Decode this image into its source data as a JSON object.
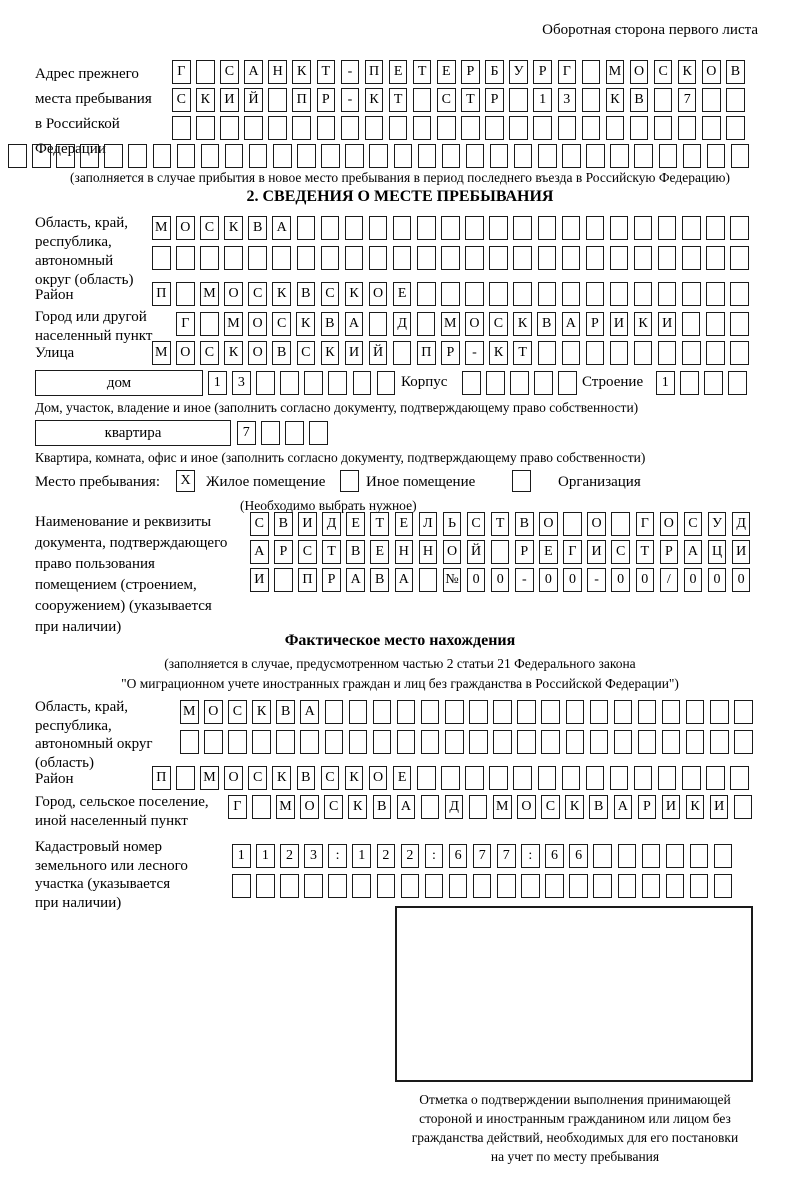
{
  "header": {
    "side_note": "Оборотная сторона первого листа"
  },
  "prev_address": {
    "label_lines": [
      "Адрес прежнего",
      "места пребывания",
      "в Российской",
      "Федерации"
    ],
    "rows": [
      [
        "Г",
        "",
        "С",
        "А",
        "Н",
        "К",
        "Т",
        "-",
        "П",
        "Е",
        "Т",
        "Е",
        "Р",
        "Б",
        "У",
        "Р",
        "Г",
        "",
        "М",
        "О",
        "С",
        "К",
        "О",
        "В"
      ],
      [
        "С",
        "К",
        "И",
        "Й",
        "",
        "П",
        "Р",
        "-",
        "К",
        "Т",
        "",
        "С",
        "Т",
        "Р",
        "",
        "1",
        "3",
        "",
        "К",
        "В",
        "",
        "7",
        "",
        ""
      ],
      [
        "",
        "",
        "",
        "",
        "",
        "",
        "",
        "",
        "",
        "",
        "",
        "",
        "",
        "",
        "",
        "",
        "",
        "",
        "",
        "",
        "",
        "",
        "",
        ""
      ],
      [
        "",
        "",
        "",
        "",
        "",
        "",
        "",
        "",
        "",
        "",
        "",
        "",
        "",
        "",
        "",
        "",
        "",
        "",
        "",
        "",
        "",
        "",
        "",
        "",
        "",
        "",
        "",
        "",
        "",
        "",
        ""
      ]
    ],
    "note": "(заполняется в случае прибытия в новое место пребывания в период последнего въезда в Российскую Федерацию)"
  },
  "section2": {
    "title": "2. СВЕДЕНИЯ О МЕСТЕ ПРЕБЫВАНИЯ",
    "oblast": {
      "label_lines": [
        "Область, край,",
        "республика,",
        "автономный",
        "округ (область)"
      ],
      "rows": [
        [
          "М",
          "О",
          "С",
          "К",
          "В",
          "А",
          "",
          "",
          "",
          "",
          "",
          "",
          "",
          "",
          "",
          "",
          "",
          "",
          "",
          "",
          "",
          "",
          "",
          "",
          ""
        ],
        [
          "",
          "",
          "",
          "",
          "",
          "",
          "",
          "",
          "",
          "",
          "",
          "",
          "",
          "",
          "",
          "",
          "",
          "",
          "",
          "",
          "",
          "",
          "",
          "",
          ""
        ]
      ]
    },
    "raion": {
      "label": "Район",
      "row": [
        "П",
        "",
        "М",
        "О",
        "С",
        "К",
        "В",
        "С",
        "К",
        "О",
        "Е",
        "",
        "",
        "",
        "",
        "",
        "",
        "",
        "",
        "",
        "",
        "",
        "",
        "",
        ""
      ]
    },
    "gorod": {
      "label_lines": [
        "Город или другой",
        "населенный пункт"
      ],
      "row": [
        "Г",
        "",
        "М",
        "О",
        "С",
        "К",
        "В",
        "А",
        "",
        "Д",
        "",
        "М",
        "О",
        "С",
        "К",
        "В",
        "А",
        "Р",
        "И",
        "К",
        "И",
        "",
        "",
        ""
      ]
    },
    "ulitsa": {
      "label": "Улица",
      "row": [
        "М",
        "О",
        "С",
        "К",
        "О",
        "В",
        "С",
        "К",
        "И",
        "Й",
        "",
        "П",
        "Р",
        "-",
        "К",
        "Т",
        "",
        "",
        "",
        "",
        "",
        "",
        "",
        "",
        ""
      ]
    },
    "dom": {
      "box_label": "дом",
      "cells": [
        "1",
        "3",
        "",
        "",
        "",
        "",
        "",
        ""
      ],
      "korpus_label": "Корпус",
      "korpus_cells": [
        "",
        "",
        "",
        "",
        ""
      ],
      "stroenie_label": "Строение",
      "stroenie_cells": [
        "1",
        "",
        "",
        ""
      ],
      "note": "Дом, участок, владение и иное (заполнить согласно документу, подтверждающему право собственности)"
    },
    "kvartira": {
      "box_label": "квартира",
      "cells": [
        "7",
        "",
        "",
        ""
      ],
      "note": "Квартира, комната, офис и иное (заполнить согласно документу, подтверждающему право собственности)"
    },
    "mesto": {
      "label": "Место пребывания:",
      "options": [
        {
          "label": "Жилое помещение",
          "value": "X"
        },
        {
          "label": "Иное помещение",
          "value": ""
        },
        {
          "label": "Организация",
          "value": ""
        }
      ],
      "note": "(Необходимо выбрать нужное)"
    },
    "doc": {
      "label_lines": [
        "Наименование и реквизиты",
        "документа, подтверждающего",
        "право пользования",
        "помещением (строением,",
        "сооружением) (указывается",
        "при наличии)"
      ],
      "rows": [
        [
          "С",
          "В",
          "И",
          "Д",
          "Е",
          "Т",
          "Е",
          "Л",
          "Ь",
          "С",
          "Т",
          "В",
          "О",
          "",
          "О",
          "",
          "Г",
          "О",
          "С",
          "У",
          "Д"
        ],
        [
          "А",
          "Р",
          "С",
          "Т",
          "В",
          "Е",
          "Н",
          "Н",
          "О",
          "Й",
          "",
          "Р",
          "Е",
          "Г",
          "И",
          "С",
          "Т",
          "Р",
          "А",
          "Ц",
          "И"
        ],
        [
          "И",
          "",
          "П",
          "Р",
          "А",
          "В",
          "А",
          "",
          "№",
          "0",
          "0",
          "-",
          "0",
          "0",
          "-",
          "0",
          "0",
          "/",
          "0",
          "0",
          "0"
        ]
      ]
    }
  },
  "section3": {
    "title": "Фактическое место нахождения",
    "note_lines": [
      "(заполняется в случае, предусмотренном частью 2 статьи 21 Федерального закона",
      "\"О миграционном учете иностранных граждан и лиц без гражданства в Российской Федерации\")"
    ],
    "oblast": {
      "label_lines": [
        "Область, край,",
        "республика,",
        "автономный округ",
        "(область)"
      ],
      "rows": [
        [
          "М",
          "О",
          "С",
          "К",
          "В",
          "А",
          "",
          "",
          "",
          "",
          "",
          "",
          "",
          "",
          "",
          "",
          "",
          "",
          "",
          "",
          "",
          "",
          "",
          ""
        ],
        [
          "",
          "",
          "",
          "",
          "",
          "",
          "",
          "",
          "",
          "",
          "",
          "",
          "",
          "",
          "",
          "",
          "",
          "",
          "",
          "",
          "",
          "",
          "",
          ""
        ]
      ]
    },
    "raion": {
      "label": "Район",
      "row": [
        "П",
        "",
        "М",
        "О",
        "С",
        "К",
        "В",
        "С",
        "К",
        "О",
        "Е",
        "",
        "",
        "",
        "",
        "",
        "",
        "",
        "",
        "",
        "",
        "",
        "",
        "",
        ""
      ]
    },
    "gorod": {
      "label_lines": [
        "Город, сельское поселение,",
        "иной населенный пункт"
      ],
      "row": [
        "Г",
        "",
        "М",
        "О",
        "С",
        "К",
        "В",
        "А",
        "",
        "Д",
        "",
        "М",
        "О",
        "С",
        "К",
        "В",
        "А",
        "Р",
        "И",
        "К",
        "И",
        ""
      ]
    },
    "kadastr": {
      "label_lines": [
        "Кадастровый номер",
        "земельного или лесного",
        "участка (указывается",
        "при наличии)"
      ],
      "rows": [
        [
          "1",
          "1",
          "2",
          "3",
          ":",
          "1",
          "2",
          "2",
          ":",
          "6",
          "7",
          "7",
          ":",
          "6",
          "6",
          "",
          "",
          "",
          "",
          "",
          ""
        ],
        [
          "",
          "",
          "",
          "",
          "",
          "",
          "",
          "",
          "",
          "",
          "",
          "",
          "",
          "",
          "",
          "",
          "",
          "",
          "",
          "",
          ""
        ]
      ]
    },
    "stamp": {
      "caption_lines": [
        "Отметка о подтверждении выполнения принимающей",
        "стороной и иностранным гражданином или лицом без",
        "гражданства действий, необходимых для его постановки",
        "на учет по месту пребывания"
      ]
    }
  }
}
